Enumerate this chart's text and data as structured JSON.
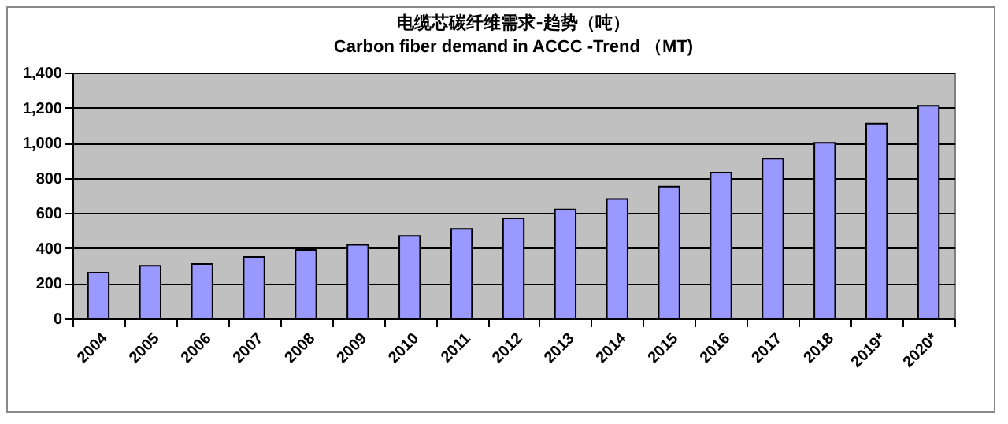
{
  "chart_data": {
    "type": "bar",
    "title": "电缆芯碳纤维需求-趋势（吨）",
    "subtitle": "Carbon fiber demand in ACCC -Trend （MT)",
    "categories": [
      "2004",
      "2005",
      "2006",
      "2007",
      "2008",
      "2009",
      "2010",
      "2011",
      "2012",
      "2013",
      "2014",
      "2015",
      "2016",
      "2017",
      "2018",
      "2019*",
      "2020*"
    ],
    "values": [
      260,
      300,
      310,
      350,
      390,
      420,
      470,
      510,
      570,
      620,
      680,
      750,
      830,
      910,
      1000,
      1110,
      1210
    ],
    "color": "#9999ff",
    "ylim": [
      0,
      1400
    ],
    "yticks": [
      0,
      200,
      400,
      600,
      800,
      {
        "value": 1000,
        "label": "1,000"
      },
      {
        "value": 1200,
        "label": "1,200"
      },
      {
        "value": 1400,
        "label": "1,400"
      }
    ],
    "grid": "y"
  }
}
